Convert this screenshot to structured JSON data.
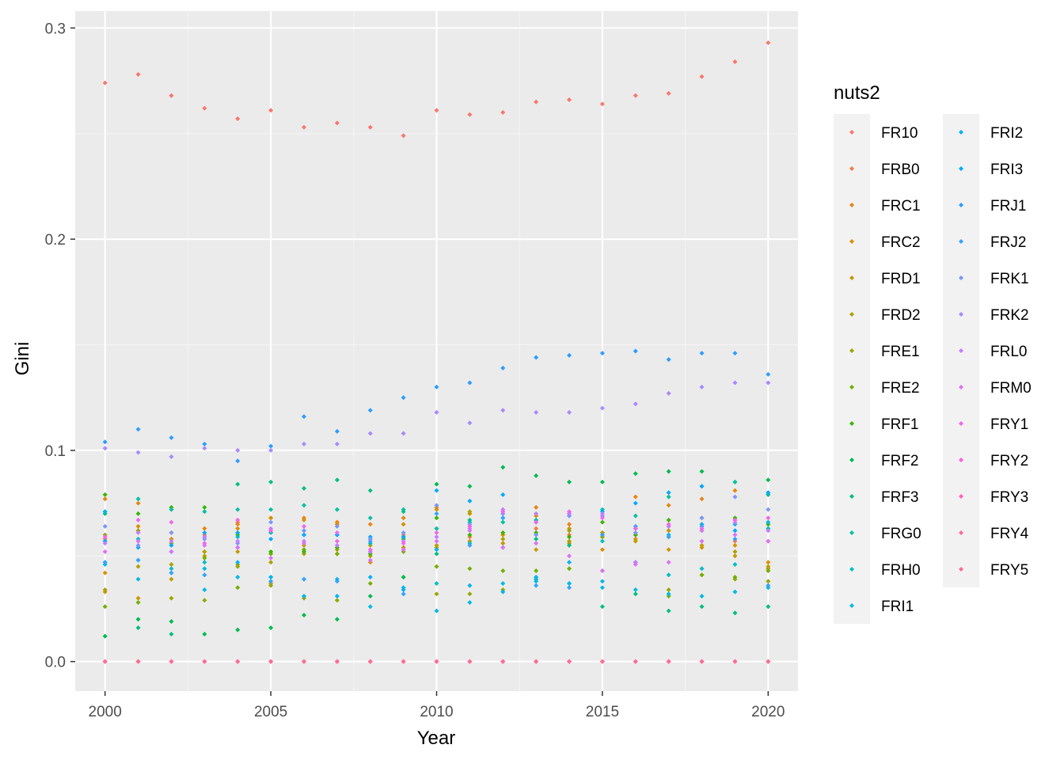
{
  "chart_data": {
    "type": "scatter",
    "title": "",
    "xlabel": "Year",
    "ylabel": "Gini",
    "xlim": [
      1999.1,
      2020.9
    ],
    "ylim": [
      -0.014,
      0.308
    ],
    "x_ticks": [
      2000,
      2005,
      2010,
      2015,
      2020
    ],
    "x_minor_ticks": [
      2002.5,
      2007.5,
      2012.5,
      2017.5
    ],
    "y_ticks": [
      0.0,
      0.1,
      0.2,
      0.3
    ],
    "y_tick_labels": [
      "0.0",
      "0.1",
      "0.2",
      "0.3"
    ],
    "y_minor_ticks": [
      0.05,
      0.15,
      0.25
    ],
    "grid": true,
    "legend": {
      "title": "nuts2",
      "placement": "right",
      "columns": 2
    },
    "x": [
      2000,
      2001,
      2002,
      2003,
      2004,
      2005,
      2006,
      2007,
      2008,
      2009,
      2010,
      2011,
      2012,
      2013,
      2014,
      2015,
      2016,
      2017,
      2018,
      2019,
      2020
    ],
    "series": [
      {
        "name": "FR10",
        "color": "#F8766D",
        "values": [
          0.274,
          0.278,
          0.268,
          0.262,
          0.257,
          0.261,
          0.253,
          0.255,
          0.253,
          0.249,
          0.261,
          0.259,
          0.26,
          0.265,
          0.266,
          0.264,
          0.268,
          0.269,
          0.277,
          0.284,
          0.293
        ]
      },
      {
        "name": "FRB0",
        "color": "#F07D46",
        "values": [
          0.058,
          0.062,
          0.058,
          0.06,
          0.066,
          0.061,
          0.062,
          0.066,
          0.058,
          0.06,
          0.063,
          0.059,
          0.06,
          0.063,
          0.06,
          0.061,
          0.06,
          0.062,
          0.065,
          0.057,
          0.057
        ]
      },
      {
        "name": "FRC1",
        "color": "#E68613",
        "values": [
          0.077,
          0.075,
          0.061,
          0.063,
          0.065,
          0.068,
          0.068,
          0.066,
          0.065,
          0.068,
          0.073,
          0.07,
          0.07,
          0.073,
          0.065,
          0.059,
          0.078,
          0.074,
          0.077,
          0.081,
          0.079
        ]
      },
      {
        "name": "FRC2",
        "color": "#D89000",
        "values": [
          0.042,
          0.064,
          0.058,
          0.052,
          0.063,
          0.068,
          0.067,
          0.065,
          0.047,
          0.065,
          0.072,
          0.057,
          0.06,
          0.069,
          0.063,
          0.053,
          0.058,
          0.053,
          0.054,
          0.055,
          0.047
        ]
      },
      {
        "name": "FRD1",
        "color": "#C49A00",
        "values": [
          0.033,
          0.03,
          0.039,
          0.05,
          0.052,
          0.037,
          0.055,
          0.051,
          0.055,
          0.054,
          0.055,
          0.07,
          0.056,
          0.053,
          0.056,
          0.06,
          0.057,
          0.062,
          0.055,
          0.05,
          0.045
        ]
      },
      {
        "name": "FRD2",
        "color": "#AFA100",
        "values": [
          0.034,
          0.045,
          0.046,
          0.052,
          0.046,
          0.047,
          0.051,
          0.053,
          0.05,
          0.053,
          0.054,
          0.071,
          0.058,
          0.07,
          0.057,
          0.061,
          0.06,
          0.059,
          0.062,
          0.052,
          0.044
        ]
      },
      {
        "name": "FRE1",
        "color": "#95A900",
        "values": [
          0.06,
          0.062,
          0.03,
          0.029,
          0.045,
          0.036,
          0.03,
          0.029,
          0.052,
          0.04,
          0.032,
          0.032,
          0.034,
          0.039,
          0.062,
          0.059,
          0.063,
          0.034,
          0.041,
          0.039,
          0.038
        ]
      },
      {
        "name": "FRE2",
        "color": "#72B000",
        "values": [
          0.026,
          0.028,
          0.056,
          0.049,
          0.035,
          0.051,
          0.053,
          0.051,
          0.037,
          0.052,
          0.045,
          0.044,
          0.043,
          0.043,
          0.044,
          0.043,
          0.047,
          0.031,
          0.041,
          0.04,
          0.043
        ]
      },
      {
        "name": "FRF1",
        "color": "#39B600",
        "values": [
          0.079,
          0.07,
          0.073,
          0.073,
          0.06,
          0.052,
          0.052,
          0.054,
          0.051,
          0.058,
          0.068,
          0.06,
          0.061,
          0.061,
          0.059,
          0.066,
          0.06,
          0.067,
          0.068,
          0.068,
          0.065
        ]
      },
      {
        "name": "FRF2",
        "color": "#00BB4E",
        "values": [
          0.012,
          0.02,
          0.019,
          0.013,
          0.015,
          0.016,
          0.022,
          0.02,
          0.031,
          0.04,
          0.084,
          0.083,
          0.092,
          0.088,
          0.085,
          0.085,
          0.089,
          0.09,
          0.09,
          0.085,
          0.086
        ]
      },
      {
        "name": "FRF3",
        "color": "#00BF7D",
        "values": [
          0.07,
          0.016,
          0.013,
          0.059,
          0.084,
          0.085,
          0.082,
          0.086,
          0.081,
          0.071,
          0.051,
          0.067,
          0.068,
          0.058,
          0.055,
          0.026,
          0.032,
          0.024,
          0.026,
          0.023,
          0.026
        ]
      },
      {
        "name": "FRG0",
        "color": "#00C1A3",
        "values": [
          0.071,
          0.077,
          0.072,
          0.071,
          0.072,
          0.072,
          0.074,
          0.072,
          0.068,
          0.072,
          0.063,
          0.066,
          0.066,
          0.067,
          0.07,
          0.072,
          0.069,
          0.078,
          0.083,
          0.085,
          0.079
        ]
      },
      {
        "name": "FRH0",
        "color": "#00BFC4",
        "values": [
          0.047,
          0.058,
          0.044,
          0.047,
          0.059,
          0.061,
          0.06,
          0.06,
          0.056,
          0.059,
          0.037,
          0.056,
          0.054,
          0.039,
          0.037,
          0.057,
          0.063,
          0.041,
          0.044,
          0.046,
          0.063
        ]
      },
      {
        "name": "FRI1",
        "color": "#00BAE0",
        "values": [
          0.046,
          0.039,
          0.042,
          0.044,
          0.04,
          0.04,
          0.039,
          0.039,
          0.026,
          0.035,
          0.024,
          0.028,
          0.037,
          0.038,
          0.037,
          0.035,
          0.034,
          0.032,
          0.031,
          0.033,
          0.035
        ]
      },
      {
        "name": "FRI2",
        "color": "#00B4EF",
        "values": [
          0.071,
          0.048,
          0.052,
          0.034,
          0.047,
          0.04,
          0.031,
          0.031,
          0.04,
          0.034,
          0.053,
          0.036,
          0.033,
          0.04,
          0.047,
          0.038,
          0.047,
          0.06,
          0.065,
          0.065,
          0.066
        ]
      },
      {
        "name": "FRI3",
        "color": "#00A9FF",
        "values": [
          0.057,
          0.054,
          0.055,
          0.061,
          0.061,
          0.058,
          0.06,
          0.06,
          0.059,
          0.059,
          0.081,
          0.076,
          0.079,
          0.066,
          0.069,
          0.071,
          0.075,
          0.08,
          0.083,
          0.062,
          0.08
        ]
      },
      {
        "name": "FRJ1",
        "color": "#2B9DFF",
        "values": [
          0.104,
          0.11,
          0.106,
          0.103,
          0.095,
          0.102,
          0.116,
          0.109,
          0.119,
          0.125,
          0.13,
          0.132,
          0.139,
          0.144,
          0.145,
          0.146,
          0.147,
          0.143,
          0.146,
          0.146,
          0.136
        ]
      },
      {
        "name": "FRJ2",
        "color": "#35A2FF",
        "values": [
          0.047,
          0.048,
          0.042,
          0.041,
          0.054,
          0.038,
          0.039,
          0.038,
          0.057,
          0.032,
          0.07,
          0.055,
          0.068,
          0.036,
          0.035,
          0.06,
          0.064,
          0.059,
          0.064,
          0.058,
          0.036
        ]
      },
      {
        "name": "FRK1",
        "color": "#7B96F9",
        "values": [
          0.064,
          0.055,
          0.061,
          0.058,
          0.056,
          0.066,
          0.062,
          0.064,
          0.058,
          0.061,
          0.074,
          0.065,
          0.07,
          0.06,
          0.069,
          0.069,
          0.061,
          0.064,
          0.068,
          0.078,
          0.072
        ]
      },
      {
        "name": "FRK2",
        "color": "#A58AFF",
        "values": [
          0.101,
          0.099,
          0.097,
          0.101,
          0.1,
          0.1,
          0.103,
          0.103,
          0.108,
          0.108,
          0.118,
          0.113,
          0.119,
          0.118,
          0.118,
          0.12,
          0.122,
          0.127,
          0.13,
          0.132,
          0.132
        ]
      },
      {
        "name": "FRL0",
        "color": "#C77CFF",
        "values": [
          0.056,
          0.061,
          0.057,
          0.059,
          0.057,
          0.063,
          0.057,
          0.055,
          0.052,
          0.057,
          0.059,
          0.063,
          0.072,
          0.07,
          0.07,
          0.07,
          0.047,
          0.064,
          0.062,
          0.066,
          0.062
        ]
      },
      {
        "name": "FRM0",
        "color": "#DF70F8",
        "values": [
          0.052,
          0.057,
          0.052,
          0.055,
          0.054,
          0.049,
          0.056,
          0.061,
          0.048,
          0.053,
          0.057,
          0.062,
          0.054,
          0.056,
          0.05,
          0.043,
          0.046,
          0.047,
          0.057,
          0.06,
          0.057
        ]
      },
      {
        "name": "FRY1",
        "color": "#F066EA",
        "values": [
          0.059,
          0.067,
          0.066,
          0.056,
          0.067,
          0.062,
          0.064,
          0.057,
          0.053,
          0.056,
          0.061,
          0.064,
          0.071,
          0.066,
          0.071,
          0.068,
          0.063,
          0.065,
          0.063,
          0.067,
          0.068
        ]
      },
      {
        "name": "FRY2",
        "color": "#FB61D7",
        "values": [
          0.0,
          0.0,
          0.0,
          0.0,
          0.0,
          0.0,
          0.0,
          0.0,
          0.0,
          0.0,
          0.0,
          0.0,
          0.0,
          0.0,
          0.0,
          0.0,
          0.0,
          0.0,
          0.0,
          0.0,
          0.0
        ]
      },
      {
        "name": "FRY3",
        "color": "#FF62BC",
        "values": [
          0.0,
          0.0,
          0.0,
          0.0,
          0.0,
          0.0,
          0.0,
          0.0,
          0.0,
          0.0,
          0.0,
          0.0,
          0.0,
          0.0,
          0.0,
          0.0,
          0.0,
          0.0,
          0.0,
          0.0,
          0.0
        ]
      },
      {
        "name": "FRY4",
        "color": "#FF6A98",
        "values": [
          0.0,
          0.0,
          0.0,
          0.0,
          0.0,
          0.0,
          0.0,
          0.0,
          0.0,
          0.0,
          0.0,
          0.0,
          0.0,
          0.0,
          0.0,
          0.0,
          0.0,
          0.0,
          0.0,
          0.0,
          0.0
        ]
      },
      {
        "name": "FRY5",
        "color": "#FF6C91",
        "values": [
          0.0,
          0.0,
          0.0,
          0.0,
          0.0,
          0.0,
          0.0,
          0.0,
          0.0,
          0.0,
          0.0,
          0.0,
          0.0,
          0.0,
          0.0,
          0.0,
          0.0,
          0.0,
          0.0,
          0.0,
          0.0
        ]
      }
    ]
  }
}
